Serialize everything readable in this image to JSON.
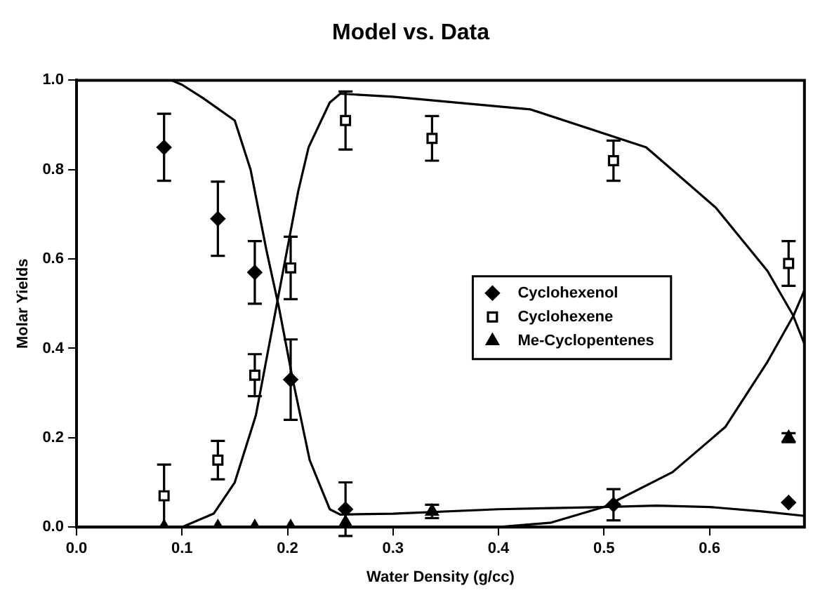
{
  "chart_data": {
    "type": "scatter",
    "title": "Model vs. Data",
    "xlabel": "Water Density (g/cc)",
    "ylabel": "Molar Yields",
    "xlim": [
      0,
      0.69
    ],
    "xticks": [
      {
        "value": 0,
        "label": "0.0"
      },
      0.1,
      0.2,
      0.3,
      0.4,
      0.5,
      0.6
    ],
    "ylim": [
      0,
      1
    ],
    "yticks": [
      {
        "value": 0,
        "label": "0.0"
      },
      0.2,
      0.4,
      0.6,
      0.8,
      {
        "value": 1,
        "label": "1.0"
      }
    ],
    "grid": false,
    "legend": "right",
    "series": [
      {
        "name": "Cyclohexenol",
        "type": "scatter",
        "marker": "diamond",
        "color": "#000000",
        "x": [
          0.083,
          0.134,
          0.169,
          0.203,
          0.255,
          0.337,
          0.509,
          0.675
        ],
        "values": [
          0.85,
          0.69,
          0.57,
          0.33,
          0.04,
          null,
          0.05,
          0.055
        ],
        "errors": [
          0.075,
          0.083,
          0.07,
          0.09,
          0.06,
          null,
          0.035,
          null
        ]
      },
      {
        "name": "Cyclohexene",
        "type": "scatter",
        "marker": "square",
        "color": "#000000",
        "x": [
          0.083,
          0.134,
          0.169,
          0.203,
          0.255,
          0.337,
          0.509,
          0.675
        ],
        "values": [
          0.07,
          0.15,
          0.34,
          0.58,
          0.91,
          0.87,
          0.82,
          0.59
        ],
        "errors": [
          0.07,
          0.043,
          0.047,
          0.07,
          0.065,
          0.05,
          0.045,
          0.05
        ]
      },
      {
        "name": "Me-Cyclopentenes",
        "type": "scatter",
        "marker": "triangle",
        "color": "#000000",
        "x": [
          0.083,
          0.134,
          0.169,
          0.203,
          0.255,
          0.337,
          0.675
        ],
        "values": [
          0,
          0,
          0,
          0,
          0.01,
          0.035,
          0.2
        ],
        "errors": [
          null,
          null,
          null,
          null,
          null,
          0.015,
          0.01
        ]
      },
      {
        "type": "line",
        "marker": "none",
        "color": "#000000",
        "x": [
          0.09,
          0.1,
          0.12,
          0.15,
          0.165,
          0.18,
          0.192,
          0.205,
          0.221,
          0.24,
          0.25,
          0.3,
          0.4,
          0.5,
          0.55,
          0.6,
          0.65,
          0.69
        ],
        "values": [
          1,
          0.99,
          0.96,
          0.91,
          0.8,
          0.62,
          0.49,
          0.33,
          0.15,
          0.04,
          0.028,
          0.03,
          0.04,
          0.045,
          0.048,
          0.045,
          0.035,
          0.025
        ]
      },
      {
        "type": "line",
        "marker": "none",
        "color": "#000000",
        "x": [
          0.1,
          0.13,
          0.15,
          0.17,
          0.19,
          0.21,
          0.22,
          0.24,
          0.25,
          0.3,
          0.43,
          0.54,
          0.606,
          0.655,
          0.679,
          0.69
        ],
        "values": [
          0,
          0.03,
          0.1,
          0.25,
          0.5,
          0.75,
          0.85,
          0.95,
          0.97,
          0.963,
          0.935,
          0.85,
          0.715,
          0.573,
          0.475,
          0.41
        ]
      },
      {
        "type": "line",
        "marker": "none",
        "color": "#000000",
        "x": [
          0.3,
          0.4,
          0.45,
          0.5,
          0.565,
          0.615,
          0.655,
          0.68,
          0.69
        ],
        "values": [
          0,
          0,
          0.01,
          0.045,
          0.123,
          0.224,
          0.37,
          0.475,
          0.53
        ]
      }
    ]
  }
}
